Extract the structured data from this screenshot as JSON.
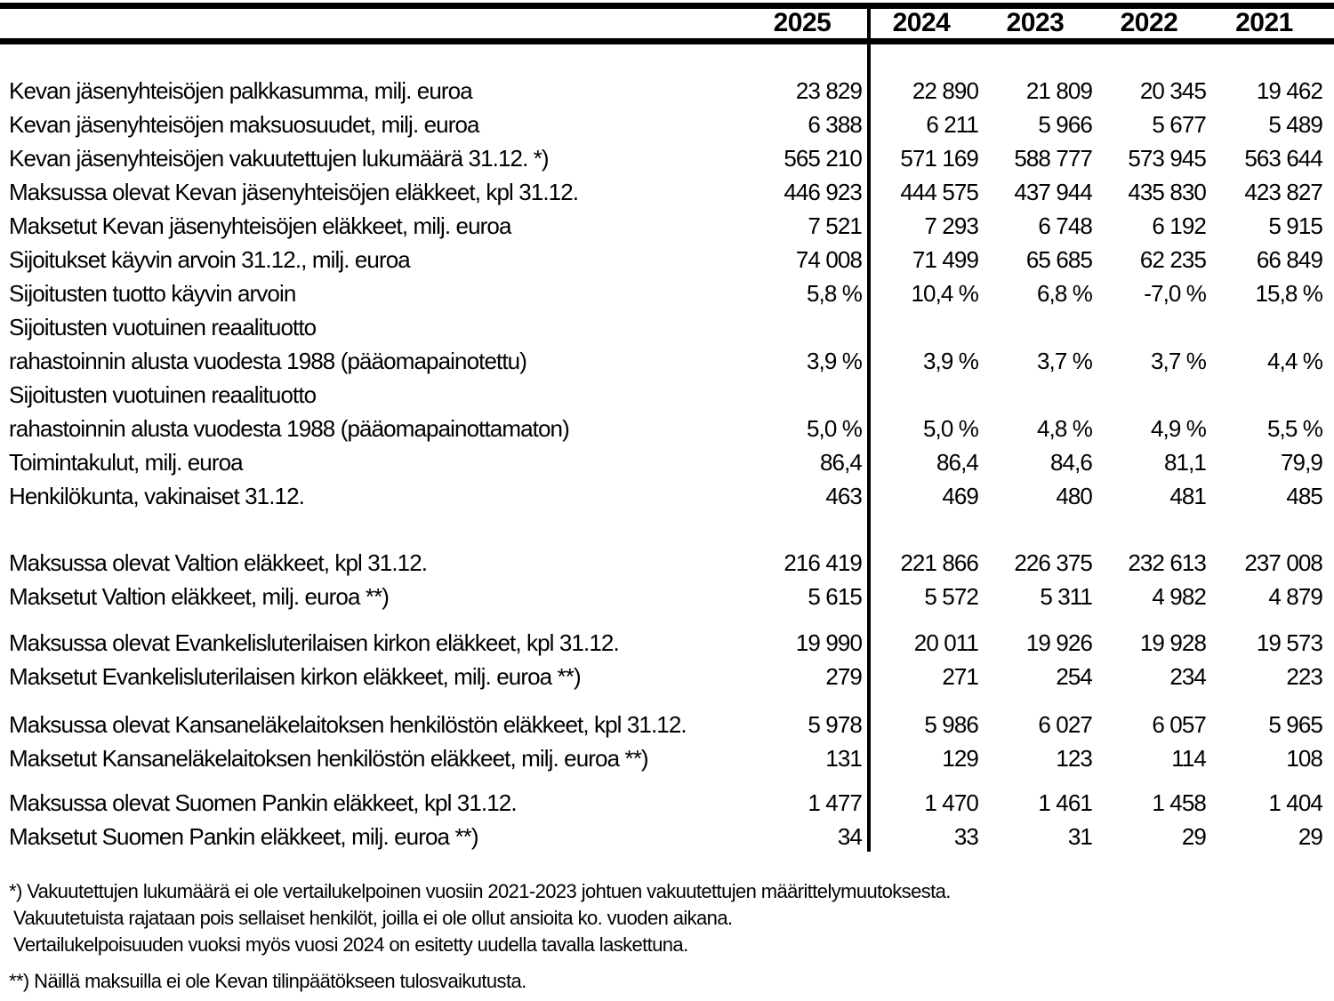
{
  "colors": {
    "background": "#ffffff",
    "text": "#000000",
    "rule": "#000000"
  },
  "table": {
    "years": [
      "2025",
      "2024",
      "2023",
      "2022",
      "2021"
    ],
    "sections": [
      {
        "rows": [
          {
            "label": "Kevan jäsenyhteisöjen palkkasumma, milj. euroa",
            "values": [
              "23 829",
              "22 890",
              "21 809",
              "20 345",
              "19 462"
            ]
          },
          {
            "label": "Kevan jäsenyhteisöjen maksuosuudet, milj. euroa",
            "values": [
              "6 388",
              "6 211",
              "5 966",
              "5 677",
              "5 489"
            ]
          },
          {
            "label": "Kevan jäsenyhteisöjen vakuutettujen lukumäärä 31.12. *)",
            "values": [
              "565 210",
              "571 169",
              "588 777",
              "573 945",
              "563 644"
            ]
          },
          {
            "label": "Maksussa olevat Kevan jäsenyhteisöjen eläkkeet, kpl 31.12.",
            "values": [
              "446 923",
              "444 575",
              "437 944",
              "435 830",
              "423 827"
            ]
          },
          {
            "label": "Maksetut Kevan jäsenyhteisöjen eläkkeet, milj. euroa",
            "values": [
              "7 521",
              "7 293",
              "6 748",
              "6 192",
              "5 915"
            ]
          },
          {
            "label": "Sijoitukset käyvin arvoin 31.12., milj. euroa",
            "values": [
              "74 008",
              "71 499",
              "65 685",
              "62 235",
              "66 849"
            ]
          },
          {
            "label": "Sijoitusten tuotto käyvin arvoin",
            "values": [
              "5,8 %",
              "10,4 %",
              "6,8 %",
              "-7,0 %",
              "15,8 %"
            ]
          },
          {
            "label": "Sijoitusten vuotuinen reaalituotto",
            "values": [
              "",
              "",
              "",
              "",
              ""
            ]
          },
          {
            "label": "rahastoinnin alusta vuodesta 1988 (pääomapainotettu)",
            "values": [
              "3,9 %",
              "3,9 %",
              "3,7 %",
              "3,7 %",
              "4,4 %"
            ]
          },
          {
            "label": "Sijoitusten vuotuinen reaalituotto",
            "values": [
              "",
              "",
              "",
              "",
              ""
            ]
          },
          {
            "label": "rahastoinnin alusta vuodesta 1988 (pääomapainottamaton)",
            "values": [
              "5,0 %",
              "5,0 %",
              "4,8 %",
              "4,9 %",
              "5,5 %"
            ]
          },
          {
            "label": "Toimintakulut, milj. euroa",
            "values": [
              "86,4",
              "86,4",
              "84,6",
              "81,1",
              "79,9"
            ]
          },
          {
            "label": "Henkilökunta, vakinaiset 31.12.",
            "values": [
              "463",
              "469",
              "480",
              "481",
              "485"
            ]
          }
        ]
      },
      {
        "rows": [
          {
            "label": "Maksussa olevat Valtion eläkkeet, kpl 31.12.",
            "values": [
              "216 419",
              "221 866",
              "226 375",
              "232 613",
              "237 008"
            ]
          },
          {
            "label": "Maksetut Valtion eläkkeet, milj. euroa **)",
            "values": [
              "5 615",
              "5 572",
              "5 311",
              "4 982",
              "4 879"
            ]
          }
        ]
      },
      {
        "rows": [
          {
            "label": "Maksussa olevat Evankelisluterilaisen kirkon eläkkeet, kpl 31.12.",
            "values": [
              "19 990",
              "20 011",
              "19 926",
              "19 928",
              "19 573"
            ]
          },
          {
            "label": "Maksetut Evankelisluterilaisen kirkon eläkkeet, milj. euroa **)",
            "values": [
              "279",
              "271",
              "254",
              "234",
              "223"
            ]
          }
        ]
      },
      {
        "rows": [
          {
            "label": "Maksussa olevat Kansaneläkelaitoksen henkilöstön eläkkeet, kpl 31.12.",
            "values": [
              "5 978",
              "5 986",
              "6 027",
              "6 057",
              "5 965"
            ]
          },
          {
            "label": "Maksetut Kansaneläkelaitoksen henkilöstön eläkkeet, milj. euroa **)",
            "values": [
              "131",
              "129",
              "123",
              "114",
              "108"
            ]
          }
        ]
      },
      {
        "rows": [
          {
            "label": "Maksussa olevat Suomen Pankin eläkkeet, kpl 31.12.",
            "values": [
              "1 477",
              "1 470",
              "1 461",
              "1 458",
              "1 404"
            ]
          },
          {
            "label": "Maksetut Suomen Pankin eläkkeet, milj. euroa **)",
            "values": [
              "34",
              "33",
              "31",
              "29",
              "29"
            ]
          }
        ]
      }
    ]
  },
  "footnotes": {
    "note1_lines": [
      "*) Vakuutettujen lukumäärä ei ole vertailukelpoinen vuosiin 2021-2023 johtuen vakuutettujen määrittelymuutoksesta.",
      "Vakuutetuista rajataan pois sellaiset henkilöt, joilla ei ole ollut ansioita ko. vuoden aikana.",
      "Vertailukelpoisuuden vuoksi myös vuosi 2024 on esitetty uudella tavalla laskettuna."
    ],
    "note2": "**) Näillä maksuilla ei ole Kevan tilinpäätökseen tulosvaikutusta."
  }
}
